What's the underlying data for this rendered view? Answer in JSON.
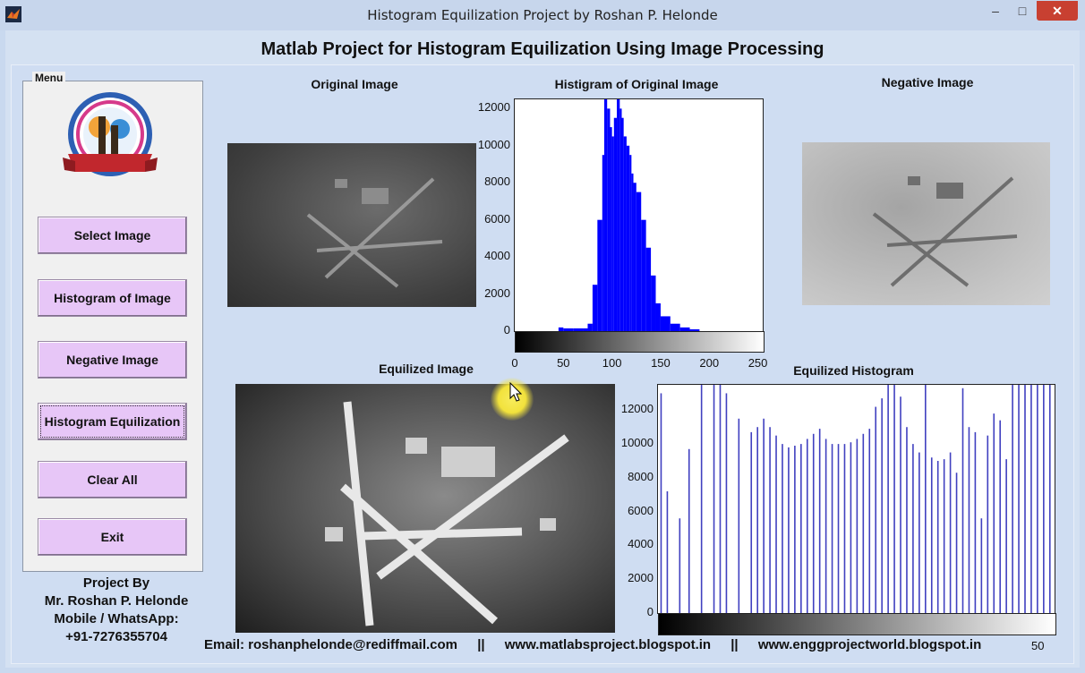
{
  "window": {
    "title": "Histogram Equilization Project by Roshan P. Helonde",
    "minimize": "–",
    "maximize": "□",
    "close": "✕"
  },
  "header": {
    "title": "Matlab Project for Histogram Equilization Using Image Processing"
  },
  "menu": {
    "legend": "Menu",
    "buttons": [
      "Select Image",
      "Histogram of Image",
      "Negative Image",
      "Histogram Equilization",
      "Clear All",
      "Exit"
    ]
  },
  "credits": {
    "line1": "Project By",
    "line2": "Mr. Roshan P. Helonde",
    "line3": "Mobile / WhatsApp:",
    "line4": "+91-7276355704"
  },
  "footer": {
    "email": "Email: roshanphelonde@rediffmail.com",
    "sep": "||",
    "site1": "www.matlabsproject.blogspot.in",
    "site2": "www.enggprojectworld.blogspot.in",
    "clip": "50"
  },
  "panels": {
    "original_label": "Original Image",
    "hist_label": "Histigram of Original Image",
    "negative_label": "Negative Image",
    "equalized_label": "Equilized Image",
    "equalized_hist_label": "Equilized Histogram"
  },
  "chart_data": [
    {
      "type": "bar",
      "title": "Histigram of Original Image",
      "xlabel": "",
      "ylabel": "",
      "xlim": [
        0,
        255
      ],
      "ylim": [
        0,
        12500
      ],
      "xticks": [
        0,
        50,
        100,
        150,
        200,
        250
      ],
      "yticks": [
        0,
        2000,
        4000,
        6000,
        8000,
        10000,
        12000
      ],
      "color": "#0000ff",
      "x": [
        40,
        45,
        50,
        60,
        70,
        75,
        80,
        85,
        90,
        92,
        95,
        98,
        100,
        102,
        105,
        108,
        110,
        112,
        115,
        118,
        120,
        122,
        125,
        130,
        135,
        140,
        145,
        150,
        160,
        170,
        180,
        190
      ],
      "values": [
        0,
        200,
        150,
        150,
        150,
        400,
        2500,
        6000,
        9500,
        13000,
        12000,
        11000,
        10500,
        11500,
        13000,
        12000,
        11500,
        10500,
        10000,
        9500,
        8500,
        8000,
        7500,
        6000,
        4500,
        3000,
        1500,
        800,
        400,
        200,
        100,
        0
      ]
    },
    {
      "type": "bar",
      "title": "Equilized Histogram",
      "xlabel": "",
      "ylabel": "",
      "xlim": [
        0,
        255
      ],
      "ylim": [
        0,
        13500
      ],
      "yticks": [
        0,
        2000,
        4000,
        6000,
        8000,
        10000,
        12000
      ],
      "color": "#4040c0",
      "x": [
        2,
        6,
        14,
        20,
        28,
        36,
        40,
        44,
        52,
        60,
        64,
        68,
        72,
        76,
        80,
        84,
        88,
        92,
        96,
        100,
        104,
        108,
        112,
        116,
        120,
        124,
        128,
        132,
        136,
        140,
        144,
        148,
        152,
        156,
        160,
        164,
        168,
        172,
        176,
        180,
        184,
        188,
        192,
        196,
        200,
        204,
        208,
        212,
        216,
        220,
        224,
        228,
        232,
        236,
        240,
        244,
        248,
        252
      ],
      "values": [
        13000,
        7200,
        5600,
        9700,
        13500,
        13500,
        13500,
        13000,
        11500,
        10700,
        11000,
        11500,
        11000,
        10500,
        10000,
        9800,
        9900,
        10000,
        10300,
        10600,
        10900,
        10300,
        10000,
        10000,
        10000,
        10100,
        10300,
        10600,
        10900,
        12200,
        12700,
        13500,
        13500,
        12800,
        11000,
        10000,
        9500,
        13500,
        9200,
        9000,
        9100,
        9500,
        8300,
        13300,
        11000,
        10700,
        5600,
        10500,
        11800,
        11400,
        9100,
        13500,
        13500,
        13500,
        13500,
        13500,
        13500,
        13500
      ]
    }
  ]
}
